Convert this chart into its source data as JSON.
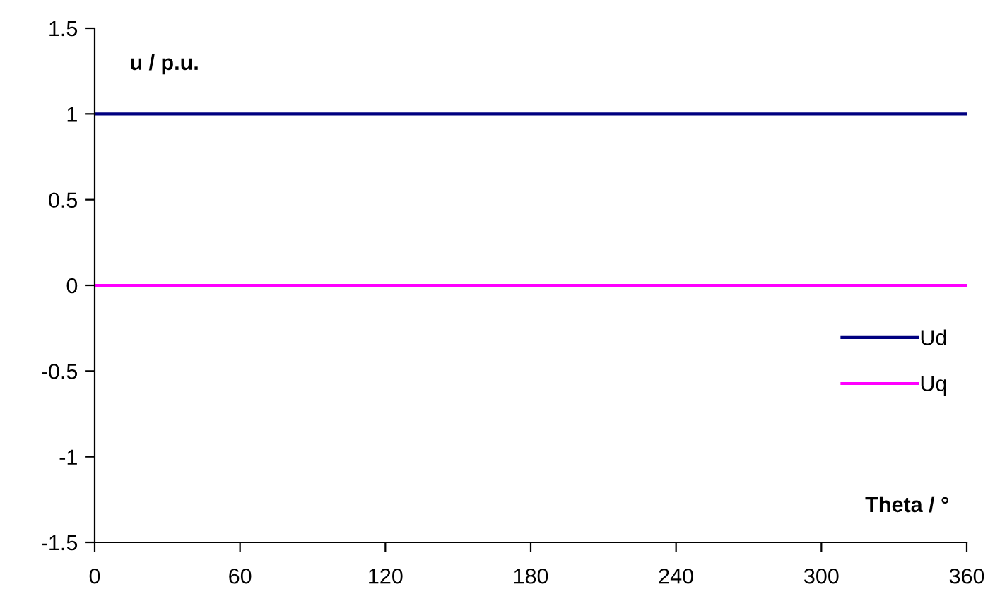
{
  "chart_data": {
    "type": "line",
    "xlabel": "Theta / °",
    "ylabel": "u / p.u.",
    "x": [
      0,
      360
    ],
    "series": [
      {
        "name": "Ud",
        "color": "#000080",
        "values": [
          1,
          1
        ]
      },
      {
        "name": "Uq",
        "color": "#ff00ff",
        "values": [
          0,
          0
        ]
      }
    ],
    "xlim": [
      0,
      360
    ],
    "xticks": [
      0,
      60,
      120,
      180,
      240,
      300,
      360
    ],
    "ylim": [
      -1.5,
      1.5
    ],
    "yticks": [
      -1.5,
      -1,
      -0.5,
      0,
      0.5,
      1,
      1.5
    ],
    "grid": false,
    "legend": "right",
    "marker": "none",
    "line_style": "solid"
  }
}
